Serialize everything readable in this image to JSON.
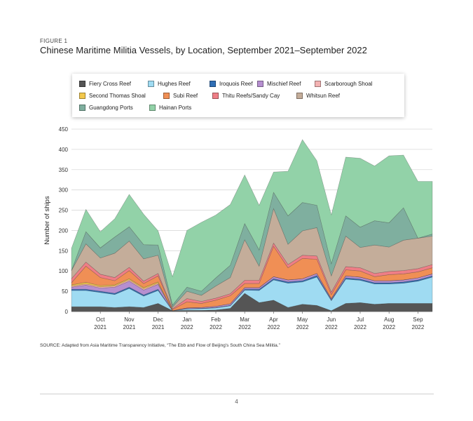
{
  "figure_label": "FIGURE 1",
  "figure_title": "Chinese Maritime Militia Vessels, by Location, September 2021–September 2022",
  "source_text": "SOURCE: Adapted from Asia Maritime Transparency Initiative, “The Ebb and Flow of Beijing’s South China Sea Militia.”",
  "page_number": "4",
  "chart_data": {
    "type": "area",
    "stacked": true,
    "title": "Chinese Maritime Militia Vessels, by Location, September 2021–September 2022",
    "xlabel": "",
    "ylabel": "Number of ships",
    "ylim": [
      0,
      450
    ],
    "yticks": [
      0,
      50,
      100,
      150,
      200,
      250,
      300,
      350,
      400,
      450
    ],
    "xlim": [
      0,
      12.5
    ],
    "grid": true,
    "legend_position": "top",
    "x_tick_positions": [
      1,
      2,
      3,
      4,
      5,
      6,
      7,
      8,
      9,
      10,
      11,
      12
    ],
    "x_tick_labels": [
      [
        "Oct",
        "2021"
      ],
      [
        "Nov",
        "2021"
      ],
      [
        "Dec",
        "2021"
      ],
      [
        "Jan",
        "2022"
      ],
      [
        "Feb",
        "2022"
      ],
      [
        "Mar",
        "2022"
      ],
      [
        "Apr",
        "2022"
      ],
      [
        "May",
        "2022"
      ],
      [
        "Jun",
        "2022"
      ],
      [
        "Jul",
        "2022"
      ],
      [
        "Aug",
        "2022"
      ],
      [
        "Sep",
        "2022"
      ]
    ],
    "x": [
      0,
      0.5,
      1,
      1.5,
      2,
      2.5,
      3,
      3.5,
      4,
      4.5,
      5,
      5.5,
      6,
      6.5,
      7,
      7.5,
      8,
      8.5,
      9,
      9.5,
      10,
      10.5,
      11,
      11.5,
      12,
      12.5
    ],
    "series": [
      {
        "name": "Fiery Cross Reef",
        "color": "#555555",
        "values": [
          12,
          12,
          12,
          10,
          12,
          10,
          20,
          2,
          3,
          3,
          4,
          8,
          45,
          22,
          28,
          10,
          18,
          15,
          2,
          20,
          22,
          18,
          20,
          20,
          20,
          20
        ]
      },
      {
        "name": "Hughes Reef",
        "color": "#9fdbf2",
        "values": [
          40,
          40,
          35,
          32,
          45,
          28,
          32,
          0,
          3,
          4,
          5,
          6,
          8,
          30,
          50,
          60,
          55,
          70,
          25,
          60,
          55,
          50,
          48,
          50,
          55,
          65
        ]
      },
      {
        "name": "Iroquois Reef",
        "color": "#2f6eb5",
        "values": [
          3,
          3,
          3,
          3,
          3,
          3,
          3,
          0,
          1,
          1,
          1,
          1,
          2,
          3,
          3,
          3,
          3,
          4,
          2,
          3,
          3,
          3,
          3,
          3,
          3,
          3
        ]
      },
      {
        "name": "Mischief Reef",
        "color": "#b68fd0",
        "values": [
          5,
          10,
          8,
          15,
          15,
          12,
          12,
          0,
          2,
          2,
          3,
          4,
          4,
          4,
          5,
          5,
          5,
          5,
          3,
          5,
          5,
          5,
          5,
          5,
          5,
          5
        ]
      },
      {
        "name": "Scarborough Shoal",
        "color": "#f3b2b2",
        "values": [
          3,
          3,
          3,
          3,
          3,
          3,
          3,
          0,
          0,
          0,
          0,
          0,
          0,
          0,
          0,
          0,
          0,
          0,
          0,
          0,
          0,
          0,
          0,
          0,
          0,
          0
        ]
      },
      {
        "name": "Second Thomas Shoal",
        "color": "#f3c84c",
        "values": [
          3,
          4,
          3,
          3,
          3,
          3,
          3,
          0,
          0,
          0,
          0,
          0,
          0,
          0,
          0,
          0,
          0,
          0,
          0,
          0,
          0,
          0,
          0,
          0,
          0,
          0
        ]
      },
      {
        "name": "Subi Reef",
        "color": "#f08f55",
        "values": [
          5,
          40,
          20,
          10,
          20,
          10,
          15,
          3,
          15,
          10,
          15,
          20,
          10,
          10,
          75,
          30,
          50,
          35,
          10,
          15,
          15,
          10,
          15,
          15,
          15,
          15
        ]
      },
      {
        "name": "Thitu Reefs/Sandy Cay",
        "color": "#ef7e86",
        "values": [
          10,
          10,
          8,
          8,
          8,
          6,
          6,
          2,
          8,
          5,
          5,
          5,
          8,
          8,
          8,
          8,
          8,
          8,
          6,
          8,
          8,
          8,
          8,
          8,
          8,
          8
        ]
      },
      {
        "name": "Whitsun Reef",
        "color": "#c4ad9a",
        "values": [
          20,
          45,
          40,
          60,
          65,
          55,
          45,
          4,
          18,
          15,
          30,
          40,
          100,
          35,
          85,
          50,
          60,
          70,
          40,
          75,
          50,
          70,
          60,
          75,
          75,
          70
        ]
      },
      {
        "name": "Guangdong Ports",
        "color": "#7faf9f",
        "values": [
          0,
          30,
          25,
          40,
          35,
          35,
          25,
          5,
          10,
          10,
          20,
          30,
          40,
          40,
          40,
          70,
          70,
          55,
          30,
          50,
          50,
          60,
          60,
          80,
          0,
          5
        ]
      },
      {
        "name": "Hainan Ports",
        "color": "#92d2a8",
        "values": [
          55,
          55,
          40,
          45,
          80,
          75,
          35,
          70,
          140,
          170,
          155,
          150,
          120,
          110,
          50,
          110,
          155,
          110,
          120,
          145,
          170,
          135,
          165,
          130,
          140,
          130
        ]
      }
    ]
  }
}
